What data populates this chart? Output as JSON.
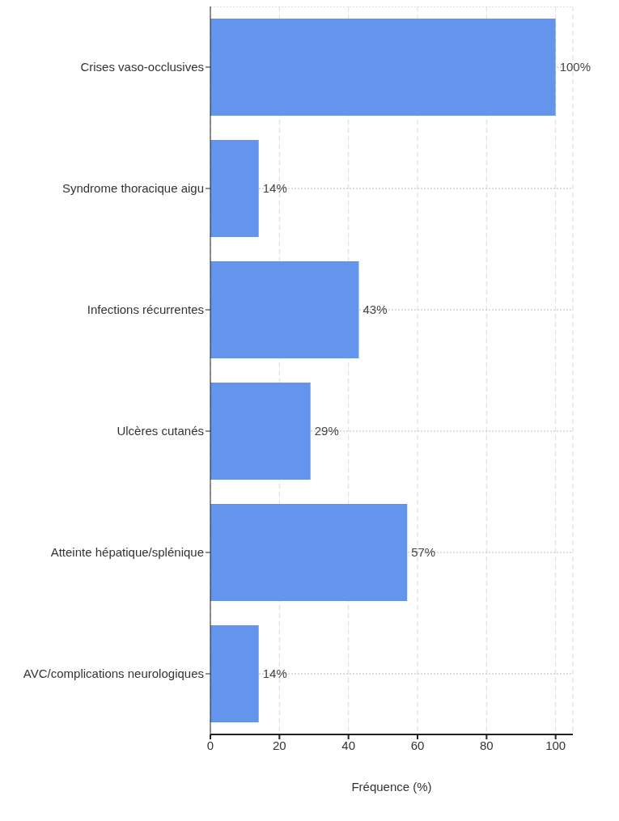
{
  "chart_data": {
    "type": "bar",
    "orientation": "horizontal",
    "xlabel": "Fréquence (%)",
    "categories": [
      "Crises vaso-occlusives",
      "Syndrome thoracique aigu",
      "Infections récurrentes",
      "Ulcères cutanés",
      "Atteinte hépatique/splénique",
      "AVC/complications neurologiques"
    ],
    "values": [
      100,
      14,
      43,
      29,
      57,
      14
    ],
    "color": "#6495ed",
    "value_labels": [
      "100%",
      "14%",
      "43%",
      "29%",
      "57%",
      "14%"
    ],
    "xlim": [
      0,
      105
    ],
    "xticks": [
      0,
      20,
      40,
      60,
      80,
      100
    ],
    "grid": true
  }
}
